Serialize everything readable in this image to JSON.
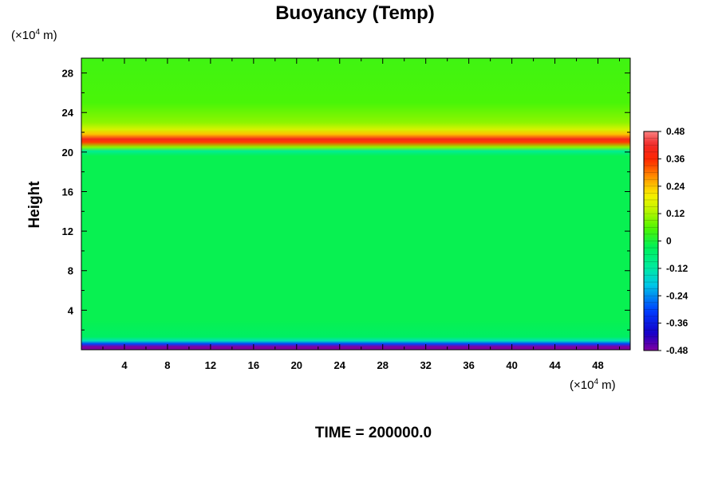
{
  "chart_data": {
    "type": "heatmap",
    "title": "Buoyancy (Temp)",
    "ylabel": "Height",
    "x_unit": "(×10⁴ m)",
    "y_unit": "(×10⁴ m)",
    "x_unit_parts": {
      "prefix": "(×10",
      "exp": "4",
      "suffix": " m)"
    },
    "y_unit_parts": {
      "prefix": "(×10",
      "exp": "4",
      "suffix": " m)"
    },
    "footer": "TIME = 200000.0",
    "xlim": [
      0,
      51
    ],
    "ylim": [
      0,
      29.5
    ],
    "x_ticks": [
      4,
      8,
      12,
      16,
      20,
      24,
      28,
      32,
      36,
      40,
      44,
      48
    ],
    "y_ticks": [
      4,
      8,
      12,
      16,
      20,
      24,
      28
    ],
    "x_tick_labels": [
      "4",
      "8",
      "12",
      "16",
      "20",
      "24",
      "28",
      "32",
      "36",
      "40",
      "44",
      "48"
    ],
    "y_tick_labels": [
      "4",
      "8",
      "12",
      "16",
      "20",
      "24",
      "28"
    ],
    "colorbar": {
      "range": [
        -0.48,
        0.48
      ],
      "tick_values": [
        0.48,
        0.36,
        0.24,
        0.12,
        0,
        -0.12,
        -0.24,
        -0.36,
        -0.48
      ],
      "tick_labels": [
        "0.48",
        "0.36",
        "0.24",
        "0.12",
        "0",
        "-0.12",
        "-0.24",
        "-0.36",
        "-0.48"
      ]
    },
    "field_profile": [
      {
        "height": 0.3,
        "value": -0.48
      },
      {
        "height": 0.6,
        "value": -0.3
      },
      {
        "height": 0.9,
        "value": -0.14
      },
      {
        "height": 1.3,
        "value": -0.04
      },
      {
        "height": 3.0,
        "value": -0.02
      },
      {
        "height": 19.6,
        "value": -0.02
      },
      {
        "height": 20.1,
        "value": -0.1
      },
      {
        "height": 20.5,
        "value": 0.1
      },
      {
        "height": 21.0,
        "value": 0.34
      },
      {
        "height": 21.3,
        "value": 0.4
      },
      {
        "height": 21.8,
        "value": 0.24
      },
      {
        "height": 22.3,
        "value": 0.16
      },
      {
        "height": 23.0,
        "value": 0.1
      },
      {
        "height": 25.0,
        "value": 0.05
      },
      {
        "height": 29.5,
        "value": 0.04
      }
    ]
  }
}
